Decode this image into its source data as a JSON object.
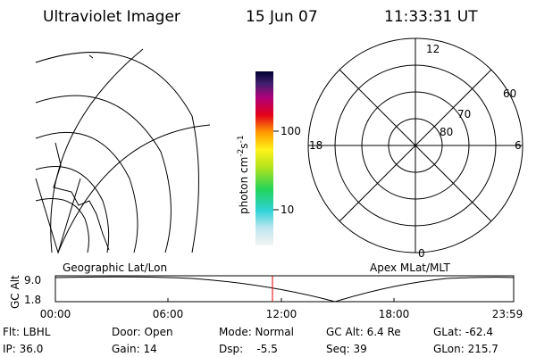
{
  "header": {
    "title": "Ultraviolet Imager",
    "date": "15 Jun 07",
    "time": "11:33:31 UT"
  },
  "colorbar": {
    "unit": [
      "photon cm",
      "-2",
      "s",
      "-1"
    ],
    "ticks": [
      "100",
      "10"
    ]
  },
  "polar": {
    "mlt": [
      "12",
      "6",
      "0",
      "18"
    ],
    "mlat": [
      "60",
      "70",
      "80"
    ]
  },
  "timeline": {
    "left_label": "Geographic Lat/Lon",
    "right_label": "Apex MLat/MLT",
    "y_label": "GC Alt",
    "y_ticks": [
      "9.0",
      "1.8"
    ],
    "x_ticks": [
      "00:00",
      "06:00",
      "12:00",
      "18:00",
      "23:59"
    ]
  },
  "status": [
    [
      "Flt: LBHL",
      "Door: Open",
      "Mode: Normal",
      "GC Alt: 6.4 Re",
      "GLat: -62.4"
    ],
    [
      "IP: 36.0",
      "Gain: 14",
      "Dsp:    -5.5",
      "Seq: 39",
      "GLon: 215.7"
    ]
  ]
}
